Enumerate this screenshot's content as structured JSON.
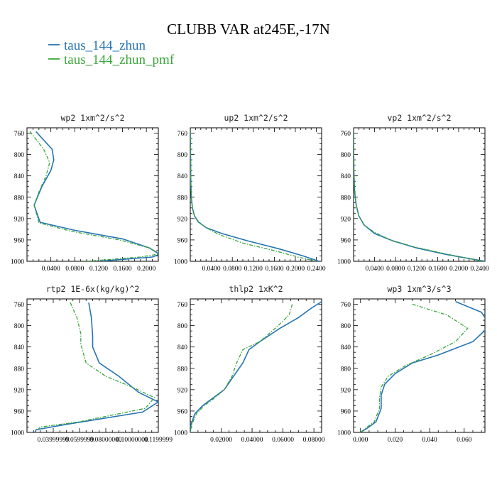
{
  "figure": {
    "title": "CLUBB VAR at245E,-17N",
    "legend": [
      {
        "label": "taus_144_zhun",
        "color": "#2474b4",
        "dash": false
      },
      {
        "label": "taus_144_zhun_pmf",
        "color": "#3aa53a",
        "dash": true
      }
    ]
  },
  "chart_data": [
    {
      "type": "line",
      "title": "wp2  1xm^2/s^2",
      "xlim": [
        0,
        0.22
      ],
      "ylim": [
        1000,
        750
      ],
      "xticks": [
        0.04,
        0.08,
        0.12,
        0.16,
        0.2
      ],
      "xticklabels": [
        "0.0400",
        "0.0800",
        "0.1200",
        "0.1600",
        "0.2000"
      ],
      "yticks": [
        760,
        800,
        840,
        880,
        920,
        960,
        1000
      ],
      "series": [
        {
          "name": "taus_144_zhun",
          "x": [
            0.015,
            0.042,
            0.045,
            0.04,
            0.025,
            0.012,
            0.022,
            0.08,
            0.16,
            0.205,
            0.222,
            0.21,
            0.12
          ],
          "y": [
            757,
            790,
            810,
            830,
            860,
            895,
            927,
            942,
            958,
            975,
            987,
            992,
            1000
          ]
        },
        {
          "name": "taus_144_zhun_pmf",
          "x": [
            0.005,
            0.028,
            0.038,
            0.032,
            0.02,
            0.012,
            0.02,
            0.075,
            0.155,
            0.205,
            0.223,
            0.19,
            0.1
          ],
          "y": [
            757,
            790,
            815,
            840,
            870,
            895,
            928,
            944,
            960,
            975,
            986,
            992,
            1000
          ]
        }
      ]
    },
    {
      "type": "line",
      "title": "up2  1xm^2/s^2",
      "xlim": [
        0,
        0.25
      ],
      "ylim": [
        1000,
        750
      ],
      "xticks": [
        0.04,
        0.08,
        0.12,
        0.16,
        0.2,
        0.24
      ],
      "xticklabels": [
        "0.0400",
        "0.0800",
        "0.1200",
        "0.1600",
        "0.2000",
        "0.2400"
      ],
      "yticks": [
        760,
        800,
        840,
        880,
        920,
        960,
        1000
      ],
      "series": [
        {
          "name": "taus_144_zhun",
          "x": [
            0.0,
            0.0005,
            0.001,
            0.002,
            0.004,
            0.008,
            0.015,
            0.03,
            0.06,
            0.11,
            0.17,
            0.215,
            0.245
          ],
          "y": [
            755,
            800,
            850,
            880,
            900,
            915,
            926,
            937,
            948,
            962,
            977,
            990,
            1000
          ]
        },
        {
          "name": "taus_144_zhun_pmf",
          "x": [
            0.0,
            0.0005,
            0.001,
            0.002,
            0.004,
            0.008,
            0.016,
            0.03,
            0.055,
            0.1,
            0.16,
            0.205,
            0.24
          ],
          "y": [
            755,
            800,
            850,
            880,
            900,
            915,
            926,
            937,
            950,
            966,
            980,
            992,
            1000
          ]
        }
      ]
    },
    {
      "type": "line",
      "title": "vp2  1xm^2/s^2",
      "xlim": [
        0,
        0.25
      ],
      "ylim": [
        1000,
        750
      ],
      "xticks": [
        0.04,
        0.08,
        0.12,
        0.16,
        0.2,
        0.24
      ],
      "xticklabels": [
        "0.0400",
        "0.0800",
        "0.1200",
        "0.1600",
        "0.2000",
        "0.2400"
      ],
      "yticks": [
        760,
        800,
        840,
        880,
        920,
        960,
        1000
      ],
      "series": [
        {
          "name": "taus_144_zhun",
          "x": [
            0.0,
            0.0005,
            0.002,
            0.005,
            0.01,
            0.02,
            0.04,
            0.075,
            0.12,
            0.175,
            0.22,
            0.25
          ],
          "y": [
            755,
            830,
            870,
            895,
            915,
            932,
            948,
            962,
            975,
            987,
            995,
            1000
          ]
        },
        {
          "name": "taus_144_zhun_pmf",
          "x": [
            0.0,
            0.0005,
            0.002,
            0.005,
            0.01,
            0.02,
            0.04,
            0.07,
            0.115,
            0.17,
            0.215,
            0.245
          ],
          "y": [
            755,
            830,
            870,
            895,
            915,
            932,
            946,
            960,
            973,
            985,
            994,
            1000
          ]
        }
      ]
    },
    {
      "type": "line",
      "title": "rtp2  1E-6x(kg/kg)^2",
      "xlim": [
        0.02,
        0.12
      ],
      "ylim": [
        1000,
        750
      ],
      "xticks": [
        0.04,
        0.06,
        0.08,
        0.1,
        0.12
      ],
      "xticklabels": [
        "0.03999999",
        "0.0599999",
        "0.08000000",
        "0.10000000",
        "0.1199999"
      ],
      "yticks": [
        760,
        800,
        840,
        880,
        920,
        960,
        1000
      ],
      "series": [
        {
          "name": "taus_144_zhun",
          "x": [
            0.067,
            0.069,
            0.07,
            0.07,
            0.075,
            0.09,
            0.105,
            0.12,
            0.108,
            0.05,
            0.027,
            0.026
          ],
          "y": [
            757,
            785,
            820,
            840,
            870,
            895,
            925,
            943,
            962,
            985,
            995,
            1000
          ]
        },
        {
          "name": "taus_144_zhun_pmf",
          "x": [
            0.053,
            0.058,
            0.061,
            0.061,
            0.065,
            0.08,
            0.1,
            0.117,
            0.11,
            0.06,
            0.03,
            0.028
          ],
          "y": [
            757,
            785,
            815,
            835,
            870,
            895,
            915,
            935,
            955,
            980,
            990,
            997
          ]
        }
      ]
    },
    {
      "type": "line",
      "title": "thlp2  1xK^2",
      "xlim": [
        0,
        0.085
      ],
      "ylim": [
        1000,
        750
      ],
      "xticks": [
        0.02,
        0.04,
        0.06,
        0.08
      ],
      "xticklabels": [
        "0.02000",
        "0.04000",
        "0.06000",
        "0.08000"
      ],
      "yticks": [
        760,
        800,
        840,
        880,
        920,
        960,
        1000
      ],
      "series": [
        {
          "name": "taus_144_zhun",
          "x": [
            0.085,
            0.078,
            0.07,
            0.058,
            0.045,
            0.038,
            0.034,
            0.028,
            0.022,
            0.015,
            0.008,
            0.003,
            0.0005,
            0.0
          ],
          "y": [
            755,
            768,
            785,
            805,
            830,
            845,
            870,
            895,
            920,
            935,
            950,
            965,
            985,
            1000
          ]
        },
        {
          "name": "taus_144_zhun_pmf",
          "x": [
            0.066,
            0.064,
            0.055,
            0.045,
            0.034,
            0.03,
            0.027,
            0.022,
            0.016,
            0.009,
            0.004,
            0.001,
            0.0
          ],
          "y": [
            760,
            780,
            805,
            830,
            845,
            870,
            895,
            920,
            935,
            950,
            965,
            985,
            1000
          ]
        }
      ]
    },
    {
      "type": "line",
      "title": "wp3  1xm^3/s^3",
      "xlim": [
        -0.004,
        0.072
      ],
      "ylim": [
        1000,
        750
      ],
      "xticks": [
        0.0,
        0.02,
        0.04,
        0.06
      ],
      "xticklabels": [
        "0.000",
        "0.020",
        "0.040",
        "0.060"
      ],
      "yticks": [
        760,
        800,
        840,
        880,
        920,
        960,
        1000
      ],
      "series": [
        {
          "name": "taus_144_zhun",
          "x": [
            0.055,
            0.07,
            0.075,
            0.065,
            0.045,
            0.03,
            0.02,
            0.014,
            0.012,
            0.012,
            0.009,
            0.004,
            0.0
          ],
          "y": [
            755,
            775,
            800,
            830,
            855,
            870,
            890,
            910,
            930,
            955,
            980,
            992,
            1000
          ]
        },
        {
          "name": "taus_144_zhun_pmf",
          "x": [
            0.03,
            0.05,
            0.062,
            0.055,
            0.04,
            0.026,
            0.016,
            0.012,
            0.011,
            0.011,
            0.008,
            0.003,
            0.0
          ],
          "y": [
            760,
            780,
            805,
            830,
            855,
            875,
            895,
            915,
            935,
            955,
            980,
            992,
            1000
          ]
        }
      ]
    }
  ]
}
